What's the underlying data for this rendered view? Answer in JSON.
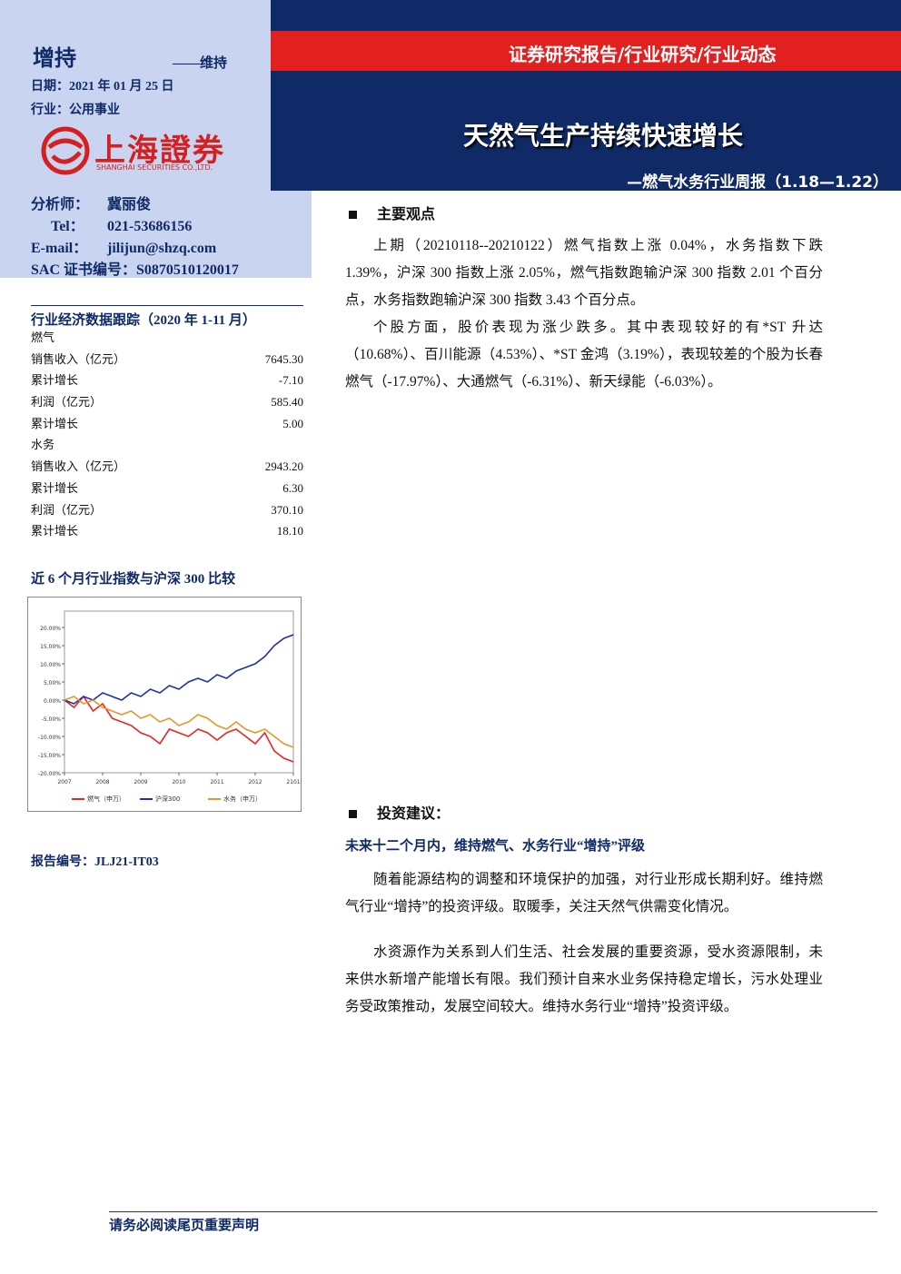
{
  "header": {
    "rating": "增持",
    "rating_prev": "——维持",
    "date": "日期：2021 年 01 月 25 日",
    "industry": "行业：公用事业",
    "logo_cn": "上海證券",
    "logo_en": "SHANGHAI SECURITIES CO.,LTD.",
    "banner": "证券研究报告/行业研究/行业动态",
    "title": "天然气生产持续快速增长",
    "subtitle": "—燃气水务行业周报（1.18—1.22）"
  },
  "analyst": [
    [
      "分析师：",
      "冀丽俊"
    ],
    [
      "Tel：",
      "021-53686156"
    ],
    [
      "E-mail：",
      "jilijun@shzq.com"
    ],
    [
      "SAC 证书编号：",
      "S0870510120017"
    ]
  ],
  "industry_data": {
    "title": "行业经济数据跟踪（2020 年 1-11 月）",
    "groups": [
      {
        "name": "燃气",
        "rows": [
          [
            "销售收入（亿元）",
            "7645.30"
          ],
          [
            "累计增长",
            "-7.10"
          ],
          [
            "利润（亿元）",
            "585.40"
          ],
          [
            "累计增长",
            "5.00"
          ]
        ]
      },
      {
        "name": "水务",
        "rows": [
          [
            "销售收入（亿元）",
            "2943.20"
          ],
          [
            "累计增长",
            "6.30"
          ],
          [
            "利润（亿元）",
            "370.10"
          ],
          [
            "累计增长",
            "18.10"
          ]
        ]
      }
    ]
  },
  "chart_data": {
    "type": "line",
    "title": "近 6 个月行业指数与沪深 300 比较",
    "x": [
      0,
      1,
      2,
      3,
      4,
      5,
      6,
      7,
      8,
      9,
      10,
      11,
      12,
      13,
      14,
      15,
      16,
      17,
      18,
      19,
      20,
      21,
      22,
      23,
      24
    ],
    "xlim": [
      0,
      24
    ],
    "xticks": [
      {
        "value": 0,
        "label": "2007"
      },
      {
        "value": 4,
        "label": "2008"
      },
      {
        "value": 8,
        "label": "2009"
      },
      {
        "value": 12,
        "label": "2010"
      },
      {
        "value": 16,
        "label": "2011"
      },
      {
        "value": 20,
        "label": "2012"
      },
      {
        "value": 24,
        "label": "2101"
      }
    ],
    "ylim": [
      -20,
      20
    ],
    "yticks": [
      {
        "value": 20,
        "label": "20.00%"
      },
      {
        "value": 15,
        "label": "15.00%"
      },
      {
        "value": 10,
        "label": "10.00%"
      },
      {
        "value": 5,
        "label": "5.00%"
      },
      {
        "value": 0,
        "label": "0.00%"
      },
      {
        "value": -5,
        "label": "-5.00%"
      },
      {
        "value": -10,
        "label": "-10.00%"
      },
      {
        "value": -15,
        "label": "-15.00%"
      },
      {
        "value": -20,
        "label": "-20.00%"
      }
    ],
    "series": [
      {
        "name": "燃气（申万）",
        "color": "#e8261f",
        "values": [
          0,
          -2,
          1,
          -3,
          -1,
          -5,
          -6,
          -7,
          -9,
          -10,
          -12,
          -8,
          -9,
          -10,
          -8,
          -9,
          -11,
          -9,
          -8,
          -10,
          -12,
          -9,
          -14,
          -16,
          -17
        ]
      },
      {
        "name": "沪深300",
        "color": "#1f2fb0",
        "values": [
          0,
          -1,
          1,
          0,
          2,
          1,
          0,
          2,
          1,
          3,
          2,
          4,
          3,
          5,
          6,
          5,
          7,
          6,
          8,
          9,
          10,
          12,
          15,
          17,
          18
        ]
      },
      {
        "name": "水务（申万）",
        "color": "#e8962a",
        "values": [
          0,
          1,
          -1,
          0,
          -2,
          -3,
          -4,
          -3,
          -5,
          -4,
          -6,
          -5,
          -7,
          -6,
          -4,
          -5,
          -7,
          -8,
          -6,
          -8,
          -9,
          -8,
          -10,
          -12,
          -13
        ]
      }
    ]
  },
  "report_no": "报告编号：JLJ21-IT03",
  "main_view": {
    "heading": "主要观点",
    "paragraphs": [
      "上期（20210118--20210122）燃气指数上涨 0.04%，水务指数下跌 1.39%，沪深 300 指数上涨 2.05%，燃气指数跑输沪深 300 指数 2.01 个百分点，水务指数跑输沪深 300 指数 3.43 个百分点。",
      "个股方面，股价表现为涨少跌多。其中表现较好的有*ST 升达（10.68%）、百川能源（4.53%）、*ST 金鸿（3.19%），表现较差的个股为长春燃气（-17.97%）、大通燃气（-6.31%）、新天绿能（-6.03%）。"
    ]
  },
  "investment": {
    "heading": "投资建议：",
    "subheading": "未来十二个月内，维持燃气、水务行业“增持”评级",
    "paragraphs": [
      "随着能源结构的调整和环境保护的加强，对行业形成长期利好。维持燃气行业“增持”的投资评级。取暖季，关注天然气供需变化情况。",
      "水资源作为关系到人们生活、社会发展的重要资源，受水资源限制，未来供水新增产能增长有限。我们预计自来水业务保持稳定增长，污水处理业务受政策推动，发展空间较大。维持水务行业“增持”投资评级。"
    ]
  },
  "footer": "请务必阅读尾页重要声明"
}
